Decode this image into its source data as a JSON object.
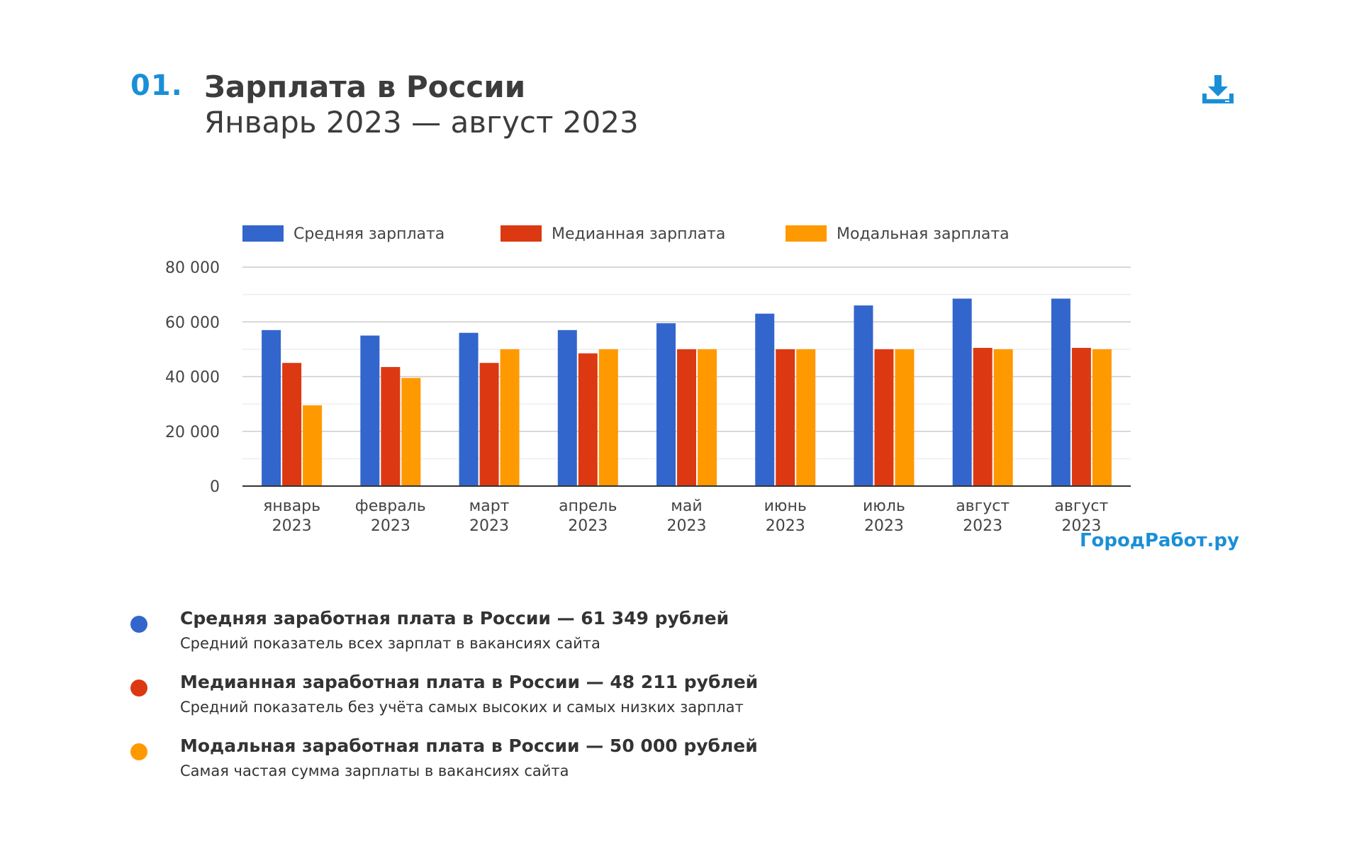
{
  "header": {
    "number": "01.",
    "title": "Зарплата в России",
    "subtitle": "Январь 2023 — август 2023"
  },
  "download": {
    "icon": "download-icon",
    "color": "#1a8fd8"
  },
  "chart_data": {
    "type": "bar",
    "categories": [
      [
        "январь",
        "2023"
      ],
      [
        "февраль",
        "2023"
      ],
      [
        "март",
        "2023"
      ],
      [
        "апрель",
        "2023"
      ],
      [
        "май",
        "2023"
      ],
      [
        "июнь",
        "2023"
      ],
      [
        "июль",
        "2023"
      ],
      [
        "август",
        "2023"
      ],
      [
        "август",
        "2023"
      ]
    ],
    "series": [
      {
        "name": "Средняя зарплата",
        "color": "#3366cc",
        "values": [
          57000,
          55000,
          56000,
          57000,
          59500,
          63000,
          66000,
          68500,
          68500
        ]
      },
      {
        "name": "Медианная зарплата",
        "color": "#dc3912",
        "values": [
          45000,
          43500,
          45000,
          48500,
          50000,
          50000,
          50000,
          50500,
          50500
        ]
      },
      {
        "name": "Модальная зарплата",
        "color": "#ff9900",
        "values": [
          29500,
          39500,
          50000,
          50000,
          50000,
          50000,
          50000,
          50000,
          50000
        ]
      }
    ],
    "yticks": [
      "0",
      "20 000",
      "40 000",
      "60 000",
      "80 000"
    ],
    "ylim": [
      0,
      80000
    ],
    "grid": true,
    "legend": "top",
    "watermark": "ГородРабот.ру"
  },
  "summary": [
    {
      "color": "#3366cc",
      "title": "Средняя заработная плата в России — 61 349 рублей",
      "desc": "Средний показатель всех зарплат в вакансиях сайта"
    },
    {
      "color": "#dc3912",
      "title": "Медианная заработная плата в России — 48 211 рублей",
      "desc": "Средний показатель без учёта самых высоких и самых низких зарплат"
    },
    {
      "color": "#ff9900",
      "title": "Модальная заработная плата в России — 50 000 рублей",
      "desc": "Самая частая сумма зарплаты в вакансиях сайта"
    }
  ]
}
